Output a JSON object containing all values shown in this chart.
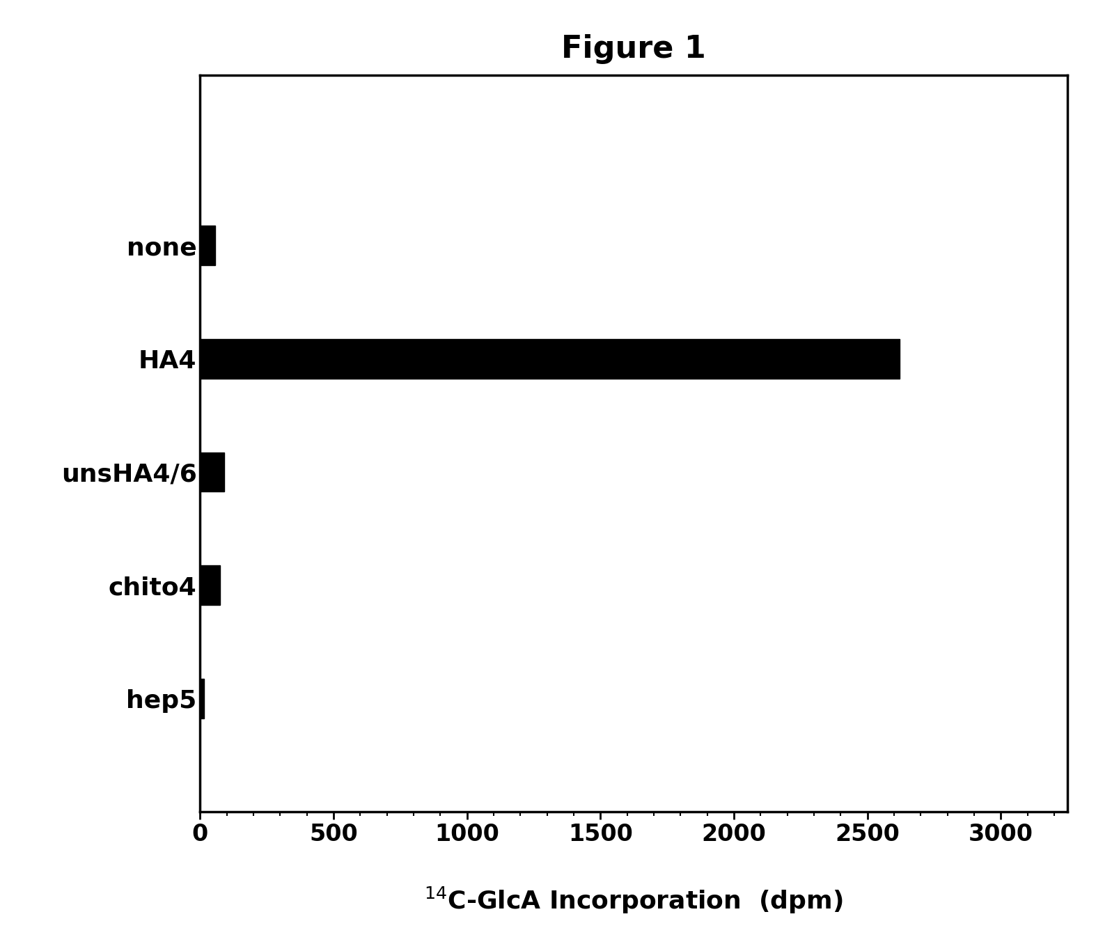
{
  "title": "Figure 1",
  "categories": [
    "none",
    "HA4",
    "unsHA4/6",
    "chito4",
    "hep5"
  ],
  "values": [
    55,
    2620,
    90,
    75,
    15
  ],
  "bar_color": "#000000",
  "background_color": "#ffffff",
  "xlim": [
    0,
    3250
  ],
  "xticks": [
    0,
    500,
    1000,
    1500,
    2000,
    2500,
    3000
  ],
  "title_fontsize": 32,
  "label_fontsize": 26,
  "tick_fontsize": 24,
  "category_fontsize": 26,
  "bar_height": 0.35,
  "ylim_bottom": -1.0,
  "ylim_top": 5.5
}
